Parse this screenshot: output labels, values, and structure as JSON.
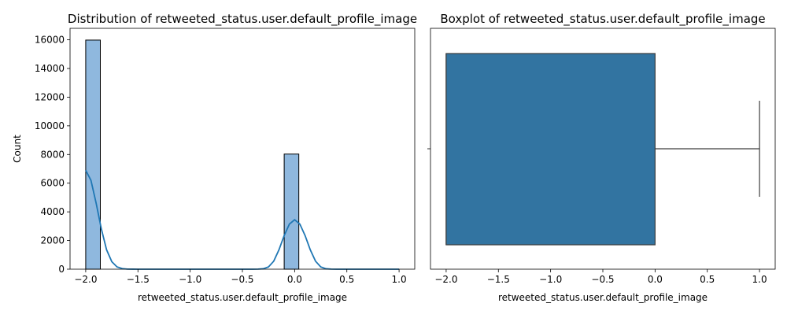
{
  "chart_data": [
    {
      "type": "histogram",
      "title": "Distribution of retweeted_status.user.default_profile_image",
      "xlabel": "retweeted_status.user.default_profile_image",
      "ylabel": "Count",
      "xlim": [
        -2.15,
        1.15
      ],
      "ylim": [
        0,
        16800
      ],
      "x_ticks": [
        -2.0,
        -1.5,
        -1.0,
        -0.5,
        0.0,
        0.5,
        1.0
      ],
      "x_tick_labels": [
        "−2.0",
        "−1.5",
        "−1.0",
        "−0.5",
        "0.0",
        "0.5",
        "1.0"
      ],
      "y_ticks": [
        0,
        2000,
        4000,
        6000,
        8000,
        10000,
        12000,
        14000,
        16000
      ],
      "y_tick_labels": [
        "0",
        "2000",
        "4000",
        "6000",
        "8000",
        "10000",
        "12000",
        "14000",
        "16000"
      ],
      "bins": [
        {
          "x0": -2.0,
          "x1": -1.86,
          "count": 15980
        },
        {
          "x0": -0.1,
          "x1": 0.04,
          "count": 8030
        }
      ],
      "kde": {
        "x": [
          -2.0,
          -1.95,
          -1.9,
          -1.85,
          -1.8,
          -1.75,
          -1.7,
          -1.65,
          -1.6,
          -1.55,
          -1.5,
          -1.4,
          -1.2,
          -1.0,
          -0.8,
          -0.6,
          -0.4,
          -0.35,
          -0.3,
          -0.25,
          -0.2,
          -0.15,
          -0.1,
          -0.05,
          0.0,
          0.05,
          0.1,
          0.15,
          0.2,
          0.25,
          0.3,
          0.35,
          0.4,
          0.5,
          0.6,
          0.8,
          1.0
        ],
        "y": [
          6900,
          6200,
          4600,
          2800,
          1350,
          520,
          160,
          40,
          8,
          2,
          0,
          0,
          0,
          0,
          0,
          0,
          0,
          5,
          30,
          160,
          560,
          1350,
          2350,
          3150,
          3450,
          3150,
          2350,
          1350,
          560,
          160,
          30,
          5,
          0,
          0,
          0,
          0,
          0
        ]
      },
      "bar_color": "#8fb8de",
      "kde_color": "#1f77b4"
    },
    {
      "type": "boxplot",
      "title": "Boxplot of retweeted_status.user.default_profile_image",
      "xlabel": "retweeted_status.user.default_profile_image",
      "xlim": [
        -2.15,
        1.15
      ],
      "x_ticks": [
        -2.0,
        -1.5,
        -1.0,
        -0.5,
        0.0,
        0.5,
        1.0
      ],
      "x_tick_labels": [
        "−2.0",
        "−1.5",
        "−1.0",
        "−0.5",
        "0.0",
        "0.5",
        "1.0"
      ],
      "box": {
        "q1": -2.0,
        "median": -2.0,
        "q3": 0.0,
        "whisker_low": -2.0,
        "whisker_high": 1.0
      },
      "box_color": "#3274a1"
    }
  ]
}
